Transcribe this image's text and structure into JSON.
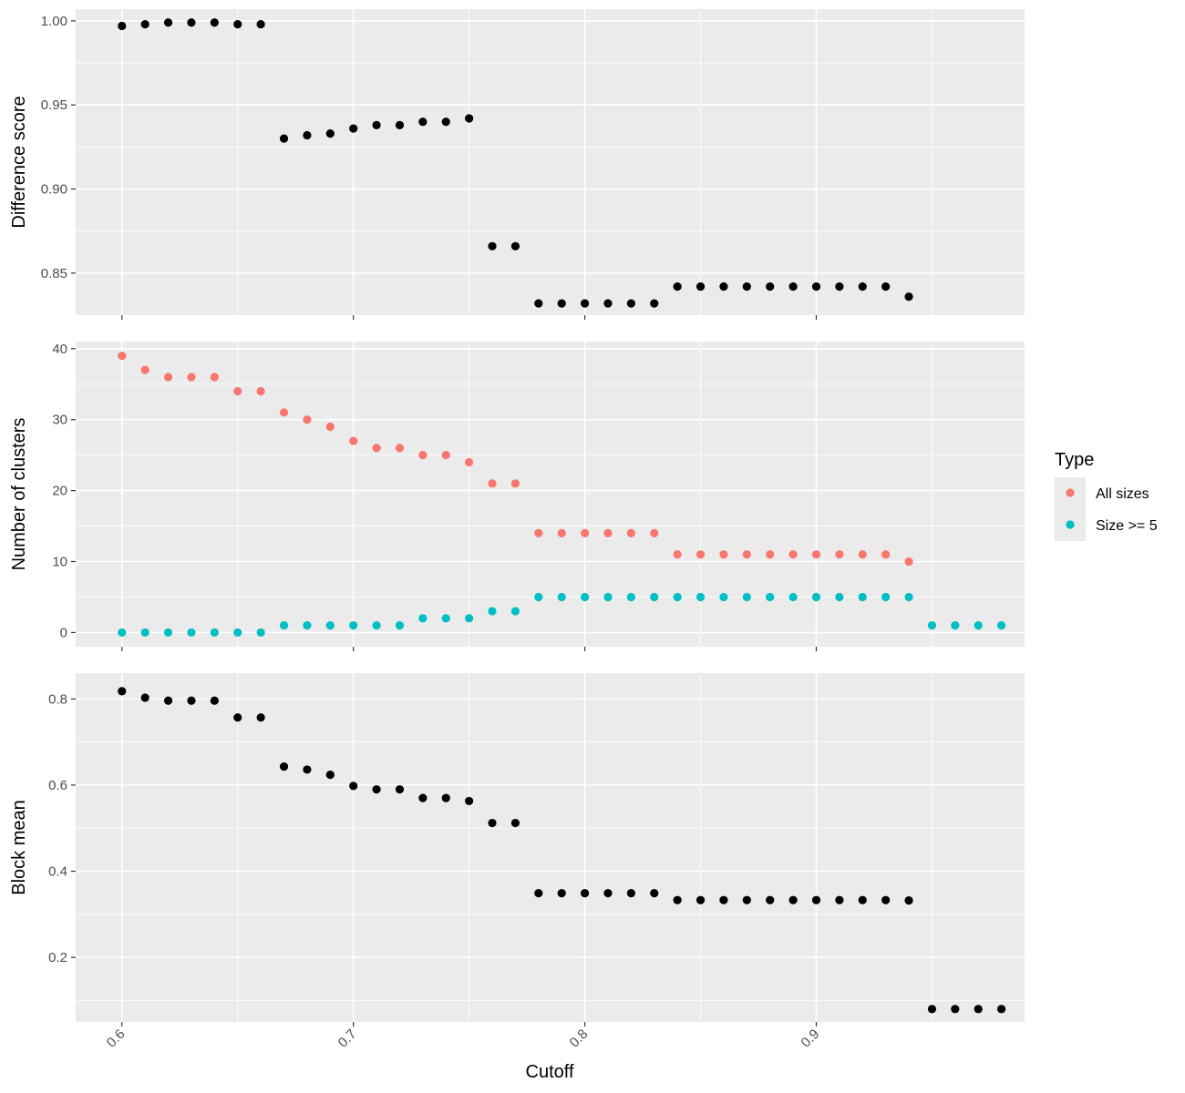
{
  "chart_data": {
    "type": "scatter",
    "xlabel": "Cutoff",
    "x_ticks": [
      0.6,
      0.7,
      0.8,
      0.9
    ],
    "xlim": [
      0.58,
      0.99
    ],
    "legend": {
      "title": "Type",
      "position": "right",
      "entries": [
        {
          "label": "All sizes",
          "color": "#F8766D"
        },
        {
          "label": "Size >= 5",
          "color": "#00BFC4"
        }
      ]
    },
    "panels": [
      {
        "ylabel": "Difference score",
        "ylim": [
          0.825,
          1.007
        ],
        "y_ticks": [
          0.85,
          0.9,
          0.95,
          1.0
        ],
        "y_tick_labels": [
          "0.85",
          "0.90",
          "0.95",
          "1.00"
        ],
        "series": [
          {
            "color": "#000000",
            "points": [
              [
                0.6,
                0.997
              ],
              [
                0.61,
                0.998
              ],
              [
                0.62,
                0.999
              ],
              [
                0.63,
                0.999
              ],
              [
                0.64,
                0.999
              ],
              [
                0.65,
                0.998
              ],
              [
                0.66,
                0.998
              ],
              [
                0.67,
                0.93
              ],
              [
                0.68,
                0.932
              ],
              [
                0.69,
                0.933
              ],
              [
                0.7,
                0.936
              ],
              [
                0.71,
                0.938
              ],
              [
                0.72,
                0.938
              ],
              [
                0.73,
                0.94
              ],
              [
                0.74,
                0.94
              ],
              [
                0.75,
                0.942
              ],
              [
                0.76,
                0.866
              ],
              [
                0.77,
                0.866
              ],
              [
                0.78,
                0.832
              ],
              [
                0.79,
                0.832
              ],
              [
                0.8,
                0.832
              ],
              [
                0.81,
                0.832
              ],
              [
                0.82,
                0.832
              ],
              [
                0.83,
                0.832
              ],
              [
                0.84,
                0.842
              ],
              [
                0.85,
                0.842
              ],
              [
                0.86,
                0.842
              ],
              [
                0.87,
                0.842
              ],
              [
                0.88,
                0.842
              ],
              [
                0.89,
                0.842
              ],
              [
                0.9,
                0.842
              ],
              [
                0.91,
                0.842
              ],
              [
                0.92,
                0.842
              ],
              [
                0.93,
                0.842
              ],
              [
                0.94,
                0.836
              ]
            ]
          }
        ]
      },
      {
        "ylabel": "Number of clusters",
        "ylim": [
          -2,
          41
        ],
        "y_ticks": [
          0,
          10,
          20,
          30,
          40
        ],
        "y_tick_labels": [
          "0",
          "10",
          "20",
          "30",
          "40"
        ],
        "series": [
          {
            "name": "All sizes",
            "color": "#F8766D",
            "points": [
              [
                0.6,
                39
              ],
              [
                0.61,
                37
              ],
              [
                0.62,
                36
              ],
              [
                0.63,
                36
              ],
              [
                0.64,
                36
              ],
              [
                0.65,
                34
              ],
              [
                0.66,
                34
              ],
              [
                0.67,
                31
              ],
              [
                0.68,
                30
              ],
              [
                0.69,
                29
              ],
              [
                0.7,
                27
              ],
              [
                0.71,
                26
              ],
              [
                0.72,
                26
              ],
              [
                0.73,
                25
              ],
              [
                0.74,
                25
              ],
              [
                0.75,
                24
              ],
              [
                0.76,
                21
              ],
              [
                0.77,
                21
              ],
              [
                0.78,
                14
              ],
              [
                0.79,
                14
              ],
              [
                0.8,
                14
              ],
              [
                0.81,
                14
              ],
              [
                0.82,
                14
              ],
              [
                0.83,
                14
              ],
              [
                0.84,
                11
              ],
              [
                0.85,
                11
              ],
              [
                0.86,
                11
              ],
              [
                0.87,
                11
              ],
              [
                0.88,
                11
              ],
              [
                0.89,
                11
              ],
              [
                0.9,
                11
              ],
              [
                0.91,
                11
              ],
              [
                0.92,
                11
              ],
              [
                0.93,
                11
              ],
              [
                0.94,
                10
              ]
            ]
          },
          {
            "name": "Size >= 5",
            "color": "#00BFC4",
            "points": [
              [
                0.6,
                0
              ],
              [
                0.61,
                0
              ],
              [
                0.62,
                0
              ],
              [
                0.63,
                0
              ],
              [
                0.64,
                0
              ],
              [
                0.65,
                0
              ],
              [
                0.66,
                0
              ],
              [
                0.67,
                1
              ],
              [
                0.68,
                1
              ],
              [
                0.69,
                1
              ],
              [
                0.7,
                1
              ],
              [
                0.71,
                1
              ],
              [
                0.72,
                1
              ],
              [
                0.73,
                2
              ],
              [
                0.74,
                2
              ],
              [
                0.75,
                2
              ],
              [
                0.76,
                3
              ],
              [
                0.77,
                3
              ],
              [
                0.78,
                5
              ],
              [
                0.79,
                5
              ],
              [
                0.8,
                5
              ],
              [
                0.81,
                5
              ],
              [
                0.82,
                5
              ],
              [
                0.83,
                5
              ],
              [
                0.84,
                5
              ],
              [
                0.85,
                5
              ],
              [
                0.86,
                5
              ],
              [
                0.87,
                5
              ],
              [
                0.88,
                5
              ],
              [
                0.89,
                5
              ],
              [
                0.9,
                5
              ],
              [
                0.91,
                5
              ],
              [
                0.92,
                5
              ],
              [
                0.93,
                5
              ],
              [
                0.94,
                5
              ],
              [
                0.95,
                1
              ],
              [
                0.96,
                1
              ],
              [
                0.97,
                1
              ],
              [
                0.98,
                1
              ]
            ]
          }
        ]
      },
      {
        "ylabel": "Block mean",
        "ylim": [
          0.05,
          0.86
        ],
        "y_ticks": [
          0.2,
          0.4,
          0.6,
          0.8
        ],
        "y_tick_labels": [
          "0.2",
          "0.4",
          "0.6",
          "0.8"
        ],
        "series": [
          {
            "color": "#000000",
            "points": [
              [
                0.6,
                0.818
              ],
              [
                0.61,
                0.803
              ],
              [
                0.62,
                0.796
              ],
              [
                0.63,
                0.796
              ],
              [
                0.64,
                0.796
              ],
              [
                0.65,
                0.757
              ],
              [
                0.66,
                0.757
              ],
              [
                0.67,
                0.643
              ],
              [
                0.68,
                0.636
              ],
              [
                0.69,
                0.624
              ],
              [
                0.7,
                0.598
              ],
              [
                0.71,
                0.59
              ],
              [
                0.72,
                0.59
              ],
              [
                0.73,
                0.57
              ],
              [
                0.74,
                0.57
              ],
              [
                0.75,
                0.563
              ],
              [
                0.76,
                0.512
              ],
              [
                0.77,
                0.512
              ],
              [
                0.78,
                0.349
              ],
              [
                0.79,
                0.349
              ],
              [
                0.8,
                0.349
              ],
              [
                0.81,
                0.349
              ],
              [
                0.82,
                0.349
              ],
              [
                0.83,
                0.349
              ],
              [
                0.84,
                0.333
              ],
              [
                0.85,
                0.333
              ],
              [
                0.86,
                0.333
              ],
              [
                0.87,
                0.333
              ],
              [
                0.88,
                0.333
              ],
              [
                0.89,
                0.333
              ],
              [
                0.9,
                0.333
              ],
              [
                0.91,
                0.333
              ],
              [
                0.92,
                0.333
              ],
              [
                0.93,
                0.333
              ],
              [
                0.94,
                0.332
              ],
              [
                0.95,
                0.08
              ],
              [
                0.96,
                0.08
              ],
              [
                0.97,
                0.08
              ],
              [
                0.98,
                0.08
              ]
            ]
          }
        ]
      }
    ]
  }
}
